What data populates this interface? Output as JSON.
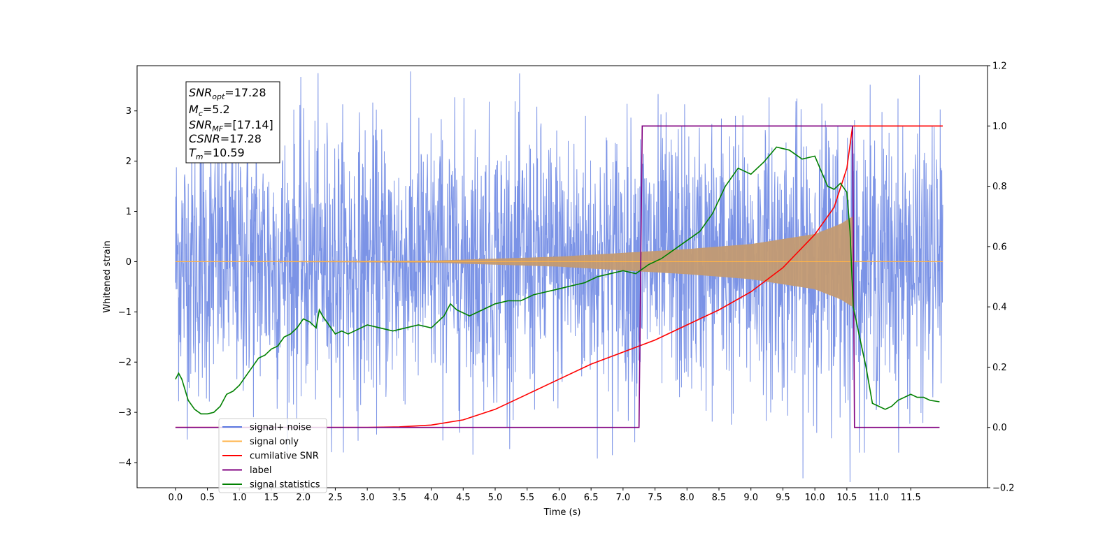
{
  "chart_data": {
    "type": "line",
    "xlabel": "Time (s)",
    "ylabel": "Whitened strain",
    "xlim": [
      -0.6,
      12.7
    ],
    "ylim": [
      -4.5,
      3.9
    ],
    "y2lim": [
      -0.2,
      1.2
    ],
    "x_ticks": [
      0.0,
      0.5,
      1.0,
      1.5,
      2.0,
      2.5,
      3.0,
      3.5,
      4.0,
      4.5,
      5.0,
      5.5,
      6.0,
      6.5,
      7.0,
      7.5,
      8.0,
      8.5,
      9.0,
      9.5,
      10.0,
      10.5,
      11.0,
      11.5
    ],
    "x_tick_labels": [
      "0.0",
      "0.5",
      "1.0",
      "1.5",
      "2.0",
      "2.5",
      "3.0",
      "3.5",
      "4.0",
      "4.5",
      "5.0",
      "5.5",
      "6.0",
      "6.5",
      "7.0",
      "7.5",
      "8.0",
      "8.5",
      "9.0",
      "9.5",
      "10.0",
      "10.5",
      "11.0",
      "11.5"
    ],
    "y_ticks": [
      -4,
      -3,
      -2,
      -1,
      0,
      1,
      2,
      3
    ],
    "y_tick_labels": [
      "−4",
      "−3",
      "−2",
      "−1",
      "0",
      "1",
      "2",
      "3"
    ],
    "y2_ticks": [
      -0.2,
      0.0,
      0.2,
      0.4,
      0.6,
      0.8,
      1.0,
      1.2
    ],
    "y2_tick_labels": [
      "−0.2",
      "0.0",
      "0.2",
      "0.4",
      "0.6",
      "0.8",
      "1.0",
      "1.2"
    ],
    "grid": false,
    "legend_position": "bottom-left",
    "noise_amplitude": 1.35,
    "signal": {
      "t_start": 0.0,
      "t_merge": 10.59,
      "t_end": 12.0,
      "envelope": [
        [
          0.0,
          0.0
        ],
        [
          4.0,
          0.02
        ],
        [
          6.0,
          0.1
        ],
        [
          8.0,
          0.25
        ],
        [
          9.0,
          0.35
        ],
        [
          10.0,
          0.55
        ],
        [
          10.4,
          0.75
        ],
        [
          10.59,
          0.9
        ]
      ]
    },
    "series": [
      {
        "name": "signal+ noise",
        "color": "#5a78e0",
        "axis": "left"
      },
      {
        "name": "signal only",
        "color": "#ffb347",
        "axis": "left"
      },
      {
        "name": "cumilative SNR",
        "color": "#ff0000",
        "axis": "right",
        "x": [
          0,
          3.0,
          3.5,
          4.0,
          4.5,
          5.0,
          5.5,
          6.0,
          6.5,
          7.0,
          7.5,
          8.0,
          8.5,
          9.0,
          9.5,
          10.0,
          10.3,
          10.5,
          10.59,
          11.0,
          12.0
        ],
        "y": [
          0,
          0.0,
          0.002,
          0.008,
          0.025,
          0.06,
          0.11,
          0.16,
          0.21,
          0.25,
          0.29,
          0.34,
          0.39,
          0.45,
          0.53,
          0.64,
          0.73,
          0.86,
          1.0,
          1.0,
          1.0
        ]
      },
      {
        "name": "label",
        "color": "#800080",
        "axis": "right",
        "x": [
          0,
          7.25,
          7.3,
          10.59,
          10.62,
          11.95
        ],
        "y": [
          0,
          0,
          1,
          1,
          0,
          0
        ]
      },
      {
        "name": "signal statistics",
        "color": "#008000",
        "axis": "right",
        "x": [
          0,
          0.05,
          0.1,
          0.2,
          0.3,
          0.4,
          0.5,
          0.6,
          0.7,
          0.8,
          0.9,
          1.0,
          1.1,
          1.2,
          1.3,
          1.4,
          1.5,
          1.6,
          1.7,
          1.8,
          1.9,
          2.0,
          2.1,
          2.2,
          2.25,
          2.3,
          2.4,
          2.5,
          2.6,
          2.7,
          2.8,
          2.9,
          3.0,
          3.2,
          3.4,
          3.6,
          3.8,
          4.0,
          4.2,
          4.3,
          4.4,
          4.6,
          4.8,
          5.0,
          5.2,
          5.4,
          5.6,
          5.8,
          6.0,
          6.2,
          6.4,
          6.6,
          6.8,
          7.0,
          7.2,
          7.4,
          7.6,
          7.8,
          8.0,
          8.2,
          8.4,
          8.6,
          8.8,
          9.0,
          9.2,
          9.4,
          9.6,
          9.8,
          10.0,
          10.2,
          10.3,
          10.4,
          10.5,
          10.55,
          10.6,
          10.7,
          10.8,
          10.9,
          11.0,
          11.1,
          11.2,
          11.3,
          11.5,
          11.6,
          11.7,
          11.8,
          11.95
        ],
        "y": [
          0.16,
          0.18,
          0.16,
          0.09,
          0.06,
          0.045,
          0.045,
          0.05,
          0.07,
          0.11,
          0.12,
          0.14,
          0.17,
          0.2,
          0.23,
          0.24,
          0.26,
          0.27,
          0.3,
          0.31,
          0.33,
          0.36,
          0.35,
          0.33,
          0.39,
          0.37,
          0.34,
          0.31,
          0.32,
          0.31,
          0.32,
          0.33,
          0.34,
          0.33,
          0.32,
          0.33,
          0.34,
          0.33,
          0.37,
          0.41,
          0.39,
          0.37,
          0.39,
          0.41,
          0.42,
          0.42,
          0.44,
          0.45,
          0.46,
          0.47,
          0.48,
          0.5,
          0.51,
          0.52,
          0.51,
          0.54,
          0.56,
          0.59,
          0.62,
          0.65,
          0.71,
          0.8,
          0.86,
          0.84,
          0.88,
          0.93,
          0.92,
          0.89,
          0.9,
          0.8,
          0.79,
          0.81,
          0.78,
          0.65,
          0.4,
          0.3,
          0.2,
          0.08,
          0.07,
          0.06,
          0.07,
          0.09,
          0.11,
          0.1,
          0.1,
          0.09,
          0.085
        ]
      }
    ]
  },
  "info_box": {
    "line1_main": "SNR",
    "line1_sub": "opt",
    "line1_rest": "=17.28",
    "line2_main": "M",
    "line2_sub": "c",
    "line2_rest": "=5.2",
    "line3_main": "SNR",
    "line3_sub": "MF",
    "line3_rest": "=[17.14]",
    "line4_main": "CSNR",
    "line4_rest": "=17.28",
    "line5_main": "T",
    "line5_sub": "m",
    "line5_rest": "=10.59"
  },
  "legend": [
    {
      "label": "signal+ noise",
      "color": "#5a78e0"
    },
    {
      "label": "signal only",
      "color": "#ffb347"
    },
    {
      "label": "cumilative SNR",
      "color": "#ff0000"
    },
    {
      "label": "label",
      "color": "#800080"
    },
    {
      "label": "signal statistics",
      "color": "#008000"
    }
  ]
}
